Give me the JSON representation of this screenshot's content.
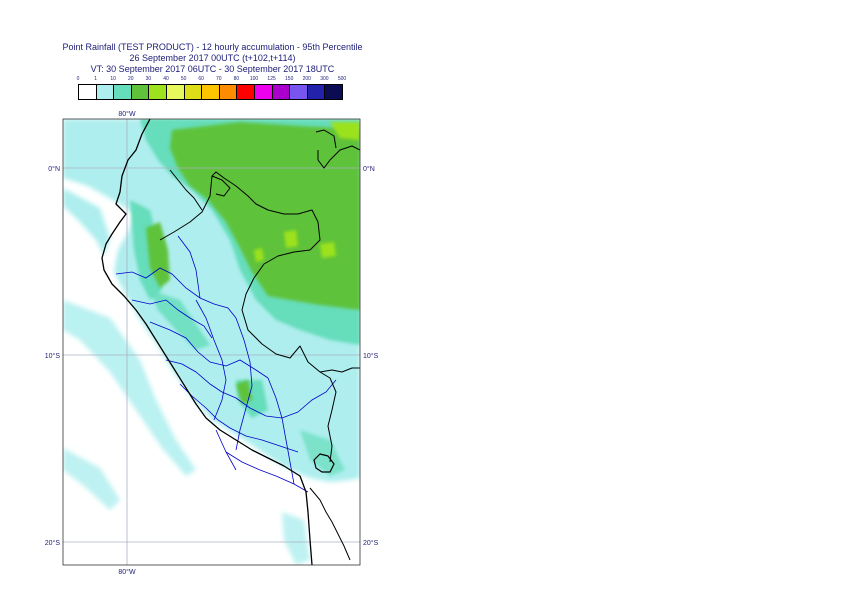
{
  "title": {
    "line1": "Point Rainfall (TEST PRODUCT) - 12 hourly accumulation - 95th Percentile",
    "line2": "26 September 2017 00UTC (t+102,t+114)",
    "line3": "VT: 30 September 2017 06UTC - 30 September 2017 18UTC"
  },
  "legend": {
    "thresholds": [
      "0",
      "1",
      "10",
      "20",
      "30",
      "40",
      "50",
      "60",
      "70",
      "80",
      "100",
      "125",
      "150",
      "200",
      "300",
      "500"
    ],
    "colors": [
      "#ffffff",
      "#aeeeee",
      "#66ddbb",
      "#5fc23a",
      "#9ce21d",
      "#e6f85c",
      "#dede18",
      "#ffc400",
      "#ff8c00",
      "#ff0000",
      "#ee00ee",
      "#aa00cc",
      "#7755ee",
      "#2222aa",
      "#0c0c55"
    ]
  },
  "map": {
    "lat_labels": [
      "0°N",
      "10°S",
      "20°S"
    ],
    "lon_labels": [
      "80°W",
      "80°W"
    ],
    "colors": {
      "ocean": "#ffffff",
      "coast": "#000000",
      "admin": "#0000cc",
      "grid": "#aab0c0"
    }
  }
}
